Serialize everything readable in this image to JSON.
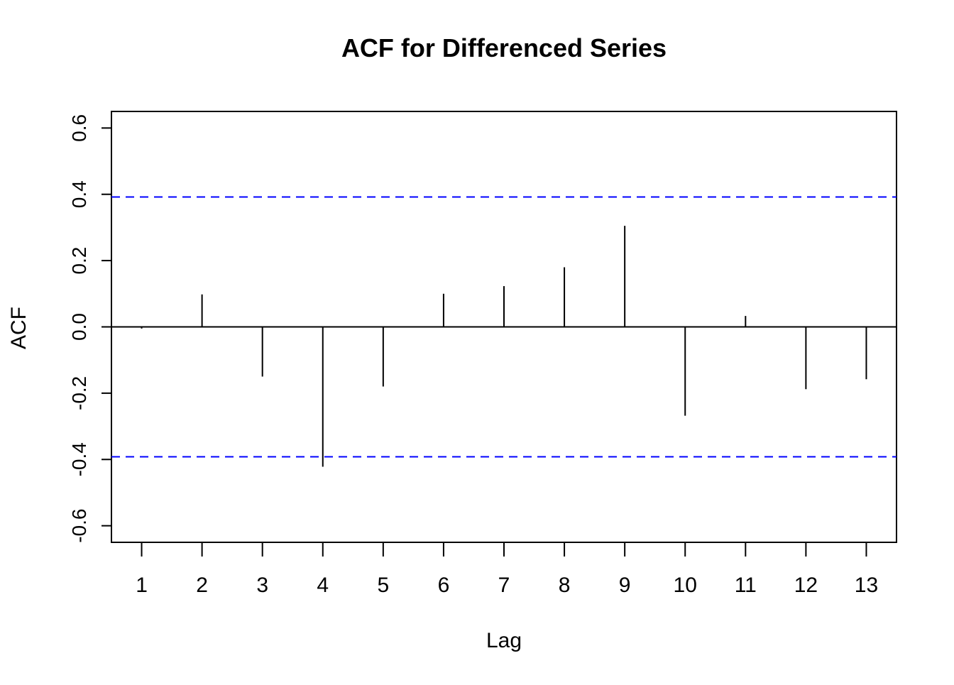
{
  "chart_data": {
    "type": "bar",
    "title": "ACF for Differenced Series",
    "xlabel": "Lag",
    "ylabel": "ACF",
    "categories": [
      "1",
      "2",
      "3",
      "4",
      "5",
      "6",
      "7",
      "8",
      "9",
      "10",
      "11",
      "12",
      "13"
    ],
    "x": [
      1,
      2,
      3,
      4,
      5,
      6,
      7,
      8,
      9,
      10,
      11,
      12,
      13
    ],
    "values": [
      -0.005,
      0.098,
      -0.15,
      -0.422,
      -0.18,
      0.1,
      0.123,
      0.18,
      0.305,
      -0.268,
      0.033,
      -0.188,
      -0.158
    ],
    "ylim": [
      -0.65,
      0.65
    ],
    "xlim": [
      0.5,
      13.5
    ],
    "yticks": [
      -0.6,
      -0.4,
      -0.2,
      0.0,
      0.2,
      0.4,
      0.6
    ],
    "ytick_labels": [
      "-0.6",
      "-0.4",
      "-0.2",
      "0.0",
      "0.2",
      "0.4",
      "0.6"
    ],
    "confidence_band": {
      "upper": 0.392,
      "lower": -0.392,
      "color": "#0000ff",
      "style": "dashed"
    },
    "bar_color": "#000000",
    "grid": false
  }
}
